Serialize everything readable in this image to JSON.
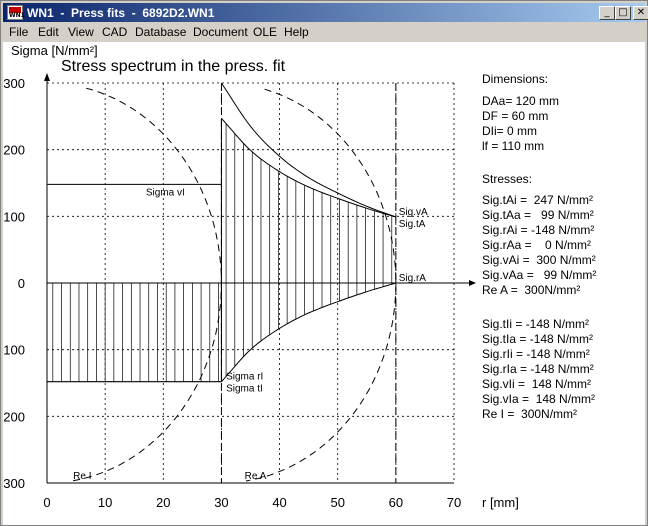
{
  "window": {
    "title": "WN1  -  Press fits  -  6892D2.WN1",
    "icon_name": "app-logo-icon",
    "icon_text": "WN1",
    "buttons": {
      "minimize": "_",
      "maximize": "□",
      "close": "✕"
    }
  },
  "menu": [
    "File",
    "Edit",
    "View",
    "CAD",
    "Database",
    "Document",
    "OLE",
    "Help"
  ],
  "chart_data": {
    "type": "line",
    "title": "Stress spectrum in the press. fit",
    "ylabel": "Sigma [N/mm²]",
    "xlabel": "r [mm]",
    "xlim": [
      0,
      70
    ],
    "ylim": [
      -300,
      300
    ],
    "x_ticks": [
      0,
      10,
      20,
      30,
      40,
      50,
      60,
      70
    ],
    "y_ticks": [
      300,
      200,
      100,
      0,
      -100,
      -200,
      -300
    ],
    "grid": true,
    "series": [
      {
        "name": "Sigma tA",
        "x": [
          30,
          35,
          40,
          45,
          50,
          55,
          60
        ],
        "values": [
          247,
          199,
          167,
          144,
          127,
          112,
          99
        ]
      },
      {
        "name": "Sigma rA",
        "x": [
          30,
          35,
          40,
          45,
          50,
          55,
          60
        ],
        "values": [
          -148,
          -100,
          -68,
          -45,
          -28,
          -13,
          0
        ]
      },
      {
        "name": "Sigma vA",
        "x": [
          30,
          35,
          40,
          45,
          50,
          55,
          60
        ],
        "values": [
          300,
          235,
          190,
          158,
          135,
          115,
          99
        ]
      },
      {
        "name": "Sigma tI",
        "x": [
          0,
          30
        ],
        "values": [
          -148,
          -148
        ]
      },
      {
        "name": "Sigma vI",
        "x": [
          0,
          30
        ],
        "values": [
          148,
          148
        ]
      }
    ],
    "annotations": {
      "sigma_vi": "Sigma vI",
      "sigma_ri": "Sigma rI",
      "sigma_ti": "Sigma tI",
      "sig_va": "Sig.vA",
      "sig_ta": "Sig.tA",
      "sig_ra": "Sig.rA",
      "re_i": "Re I",
      "re_a": "Re A"
    }
  },
  "panel": {
    "dimensions_heading": "Dimensions:",
    "dimensions": [
      "DAa= 120 mm",
      "DF = 60 mm",
      "DIi= 0 mm",
      "lf = 110 mm"
    ],
    "stresses_heading": "Stresses:",
    "outer": [
      "Sig.tAi =  247 N/mm²",
      "Sig.tAa =   99 N/mm²",
      "Sig.rAi = -148 N/mm²",
      "Sig.rAa =    0 N/mm²",
      "Sig.vAi =  300 N/mm²",
      "Sig.vAa =   99 N/mm²",
      "Re A =  300N/mm²"
    ],
    "inner": [
      "Sig.tIi = -148 N/mm²",
      "Sig.tIa = -148 N/mm²",
      "Sig.rIi = -148 N/mm²",
      "Sig.rIa = -148 N/mm²",
      "Sig.vIi =  148 N/mm²",
      "Sig.vIa =  148 N/mm²",
      "Re I =  300N/mm²"
    ]
  }
}
